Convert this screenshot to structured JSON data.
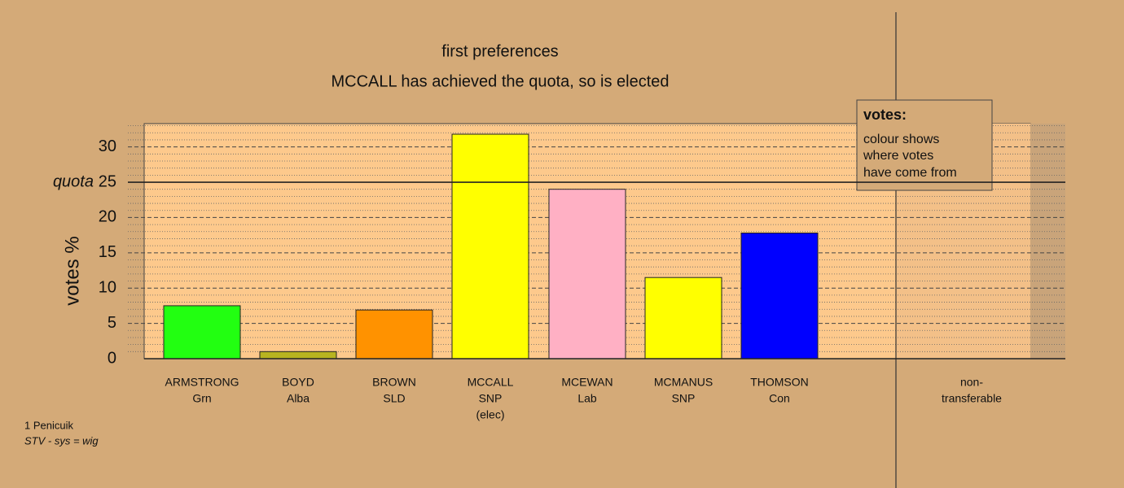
{
  "chart_data": {
    "type": "bar",
    "title": "first preferences",
    "subtitle": "MCCALL has achieved the quota, so is elected",
    "y_label": "votes %",
    "categories": [
      "ARMSTRONG",
      "BOYD",
      "BROWN",
      "MCCALL",
      "MCEWAN",
      "MCMANUS",
      "THOMSON",
      "non-"
    ],
    "parties": [
      "Grn",
      "Alba",
      "SLD",
      "SNP",
      "Lab",
      "SNP",
      "Con",
      "transferable"
    ],
    "notes": [
      null,
      null,
      null,
      "(elec)",
      null,
      null,
      null,
      null
    ],
    "values": [
      7.5,
      1.0,
      6.9,
      31.8,
      24.0,
      11.5,
      17.8,
      0
    ],
    "colors": [
      "#22ff11",
      "#b8b420",
      "#ff9200",
      "#ffff00",
      "#ffb0c4",
      "#ffff00",
      "#0000ff",
      "#d4aa78"
    ],
    "ylim": [
      0,
      33.3
    ],
    "yticks": [
      0,
      5,
      10,
      15,
      20,
      25,
      30
    ],
    "minor_yticks": [
      1,
      2,
      3,
      4,
      6,
      7,
      8,
      9,
      11,
      12,
      13,
      14,
      16,
      17,
      18,
      19,
      21,
      22,
      23,
      24,
      26,
      27,
      28,
      29,
      31,
      32,
      33
    ],
    "quota": 25,
    "quota_label": "quota",
    "legend": {
      "title": "votes:",
      "lines": [
        "colour shows",
        "where votes",
        "have come from"
      ]
    },
    "footer": {
      "ward": "1 Penicuik",
      "system": "STV - sys = wig"
    }
  }
}
